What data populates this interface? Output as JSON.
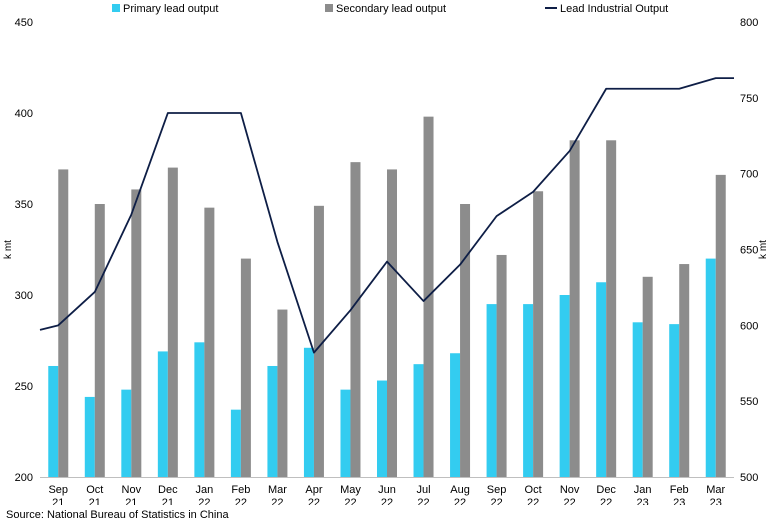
{
  "chart_data": {
    "type": "bar+line",
    "categories": [
      [
        "Sep",
        "21"
      ],
      [
        "Oct",
        "21"
      ],
      [
        "Nov",
        "21"
      ],
      [
        "Dec",
        "21"
      ],
      [
        "Jan",
        "22"
      ],
      [
        "Feb",
        "22"
      ],
      [
        "Mar",
        "22"
      ],
      [
        "Apr",
        "22"
      ],
      [
        "May",
        "22"
      ],
      [
        "Jun",
        "22"
      ],
      [
        "Jul",
        "22"
      ],
      [
        "Aug",
        "22"
      ],
      [
        "Sep",
        "22"
      ],
      [
        "Oct",
        "22"
      ],
      [
        "Nov",
        "22"
      ],
      [
        "Dec",
        "22"
      ],
      [
        "Jan",
        "23"
      ],
      [
        "Feb",
        "23"
      ],
      [
        "Mar",
        "23"
      ]
    ],
    "series": [
      {
        "name": "Primary lead output",
        "type": "bar",
        "axis": "left",
        "color": "#33CCF0",
        "values": [
          261,
          244,
          248,
          269,
          274,
          237,
          261,
          271,
          248,
          253,
          262,
          268,
          295,
          295,
          300,
          307,
          285,
          284,
          320
        ]
      },
      {
        "name": "Secondary lead output",
        "type": "bar",
        "axis": "left",
        "color": "#8C8C8C",
        "values": [
          369,
          350,
          358,
          370,
          348,
          320,
          292,
          349,
          373,
          369,
          398,
          350,
          322,
          357,
          385,
          385,
          310,
          317,
          366
        ]
      },
      {
        "name": "Lead Industrial Output",
        "type": "line",
        "axis": "right",
        "color": "#0E1E46",
        "values": [
          600,
          622,
          673,
          740,
          740,
          740,
          655,
          582,
          610,
          642,
          616,
          640,
          672,
          688,
          715,
          756,
          756,
          756,
          763
        ]
      }
    ],
    "leading_value": 597,
    "trailing_value": 763,
    "ylabel_left": "k mt",
    "ylabel_right": "k mt",
    "ylim_left": [
      200,
      450
    ],
    "yticks_left": [
      200,
      250,
      300,
      350,
      400,
      450
    ],
    "ylim_right": [
      500,
      800
    ],
    "yticks_right": [
      500,
      550,
      600,
      650,
      700,
      750,
      800
    ],
    "legend_position": "top",
    "grid": false
  },
  "source": "Source: National Bureau of Statistics in China"
}
